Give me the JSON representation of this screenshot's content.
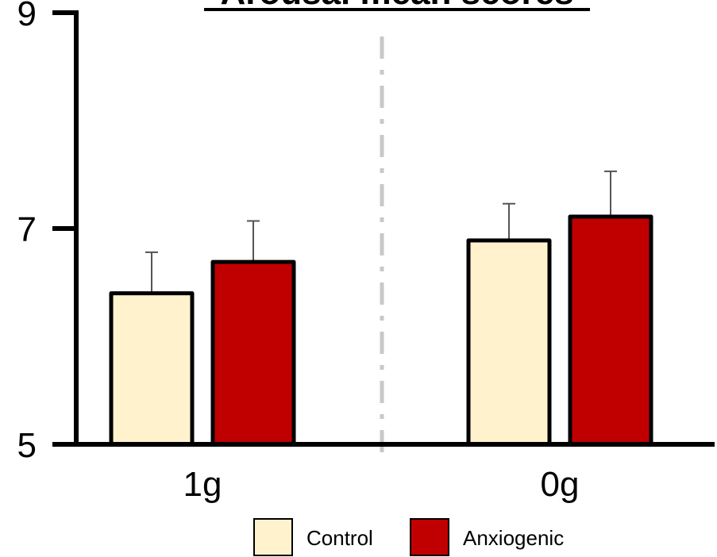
{
  "chart_data": {
    "type": "bar",
    "title": "Arousal mean scores",
    "categories": [
      "1g",
      "0g"
    ],
    "series": [
      {
        "name": "Control",
        "color": "#fff2cc",
        "values": [
          6.4,
          6.89
        ],
        "errors": [
          0.38,
          0.34
        ]
      },
      {
        "name": "Anxiogenic",
        "color": "#c00000",
        "values": [
          6.69,
          7.11
        ],
        "errors": [
          0.38,
          0.42
        ]
      }
    ],
    "yticks": [
      "5",
      "7",
      "9"
    ],
    "ylim": [
      5,
      9
    ],
    "xlabel": "",
    "ylabel": "",
    "grid": false,
    "separator": "dash-dot line between groups",
    "legend_position": "bottom-right"
  }
}
